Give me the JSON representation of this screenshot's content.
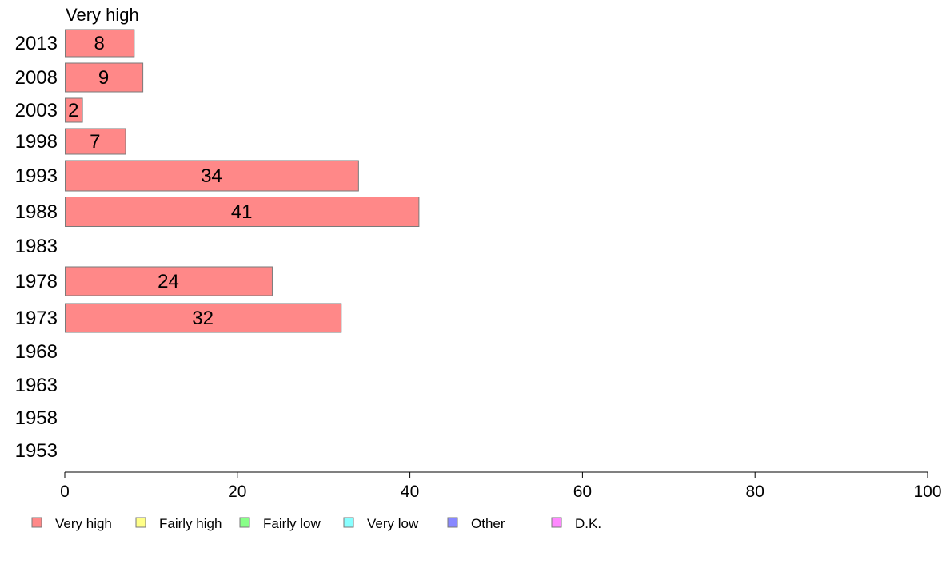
{
  "chart_data": {
    "type": "bar",
    "orientation": "horizontal",
    "panel_title": "Very high",
    "categories": [
      "2013",
      "2008",
      "2003",
      "1998",
      "1993",
      "1988",
      "1983",
      "1978",
      "1973",
      "1968",
      "1963",
      "1958",
      "1953"
    ],
    "series": [
      {
        "name": "Very high",
        "color": "#ff8888",
        "values": [
          8,
          9,
          2,
          7,
          34,
          41,
          null,
          24,
          32,
          null,
          null,
          null,
          null
        ],
        "labels": [
          "8",
          "9",
          "2",
          "7",
          "34",
          "41",
          "",
          "24",
          "32",
          "",
          "",
          "",
          ""
        ]
      }
    ],
    "xlim": [
      0,
      100
    ],
    "xticks": [
      "0",
      "20",
      "40",
      "60",
      "80",
      "100"
    ],
    "grid": false,
    "legend_position": "bottom",
    "legend": [
      {
        "label": "Very high",
        "color": "#ff8888"
      },
      {
        "label": "Fairly high",
        "color": "#ffff88"
      },
      {
        "label": "Fairly low",
        "color": "#88ff88"
      },
      {
        "label": "Very low",
        "color": "#88ffff"
      },
      {
        "label": "Other",
        "color": "#8888ff"
      },
      {
        "label": "D.K.",
        "color": "#ff88ff"
      }
    ]
  }
}
